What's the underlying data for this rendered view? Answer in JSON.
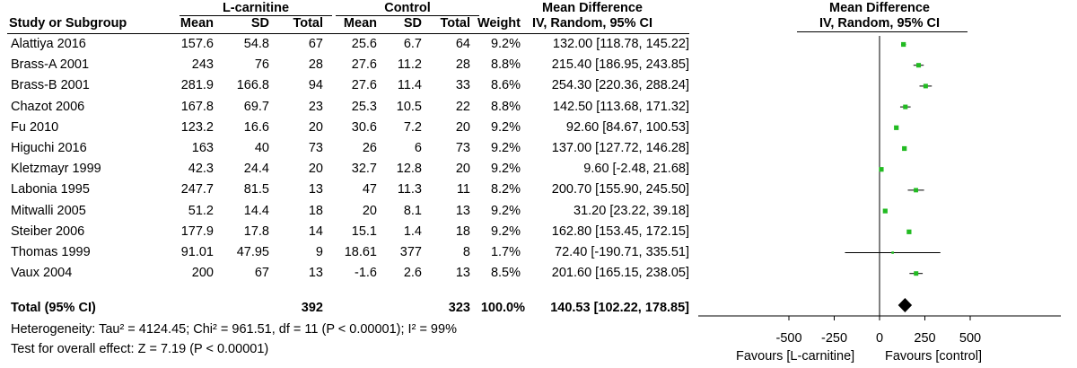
{
  "header": {
    "group1": "L-carnitine",
    "group2": "Control",
    "md_title": "Mean Difference",
    "md_sub": "IV, Random, 95% CI",
    "plot_title": "Mean Difference",
    "plot_sub": "IV, Random, 95% CI",
    "col_study": "Study or Subgroup",
    "col_mean1": "Mean",
    "col_sd1": "SD",
    "col_total1": "Total",
    "col_mean2": "Mean",
    "col_sd2": "SD",
    "col_total2": "Total",
    "col_weight": "Weight"
  },
  "rows": [
    {
      "study": "Alattiya 2016",
      "m1": "157.6",
      "sd1": "54.8",
      "n1": "67",
      "m2": "25.6",
      "sd2": "6.7",
      "n2": "64",
      "weight": "9.2%",
      "ci": "132.00 [118.78, 145.22]"
    },
    {
      "study": "Brass-A 2001",
      "m1": "243",
      "sd1": "76",
      "n1": "28",
      "m2": "27.6",
      "sd2": "11.2",
      "n2": "28",
      "weight": "8.8%",
      "ci": "215.40 [186.95, 243.85]"
    },
    {
      "study": "Brass-B 2001",
      "m1": "281.9",
      "sd1": "166.8",
      "n1": "94",
      "m2": "27.6",
      "sd2": "11.4",
      "n2": "33",
      "weight": "8.6%",
      "ci": "254.30 [220.36, 288.24]"
    },
    {
      "study": "Chazot 2006",
      "m1": "167.8",
      "sd1": "69.7",
      "n1": "23",
      "m2": "25.3",
      "sd2": "10.5",
      "n2": "22",
      "weight": "8.8%",
      "ci": "142.50 [113.68, 171.32]"
    },
    {
      "study": "Fu 2010",
      "m1": "123.2",
      "sd1": "16.6",
      "n1": "20",
      "m2": "30.6",
      "sd2": "7.2",
      "n2": "20",
      "weight": "9.2%",
      "ci": "92.60 [84.67, 100.53]"
    },
    {
      "study": "Higuchi 2016",
      "m1": "163",
      "sd1": "40",
      "n1": "73",
      "m2": "26",
      "sd2": "6",
      "n2": "73",
      "weight": "9.2%",
      "ci": "137.00 [127.72, 146.28]"
    },
    {
      "study": "Kletzmayr 1999",
      "m1": "42.3",
      "sd1": "24.4",
      "n1": "20",
      "m2": "32.7",
      "sd2": "12.8",
      "n2": "20",
      "weight": "9.2%",
      "ci": "9.60 [-2.48, 21.68]"
    },
    {
      "study": "Labonia 1995",
      "m1": "247.7",
      "sd1": "81.5",
      "n1": "13",
      "m2": "47",
      "sd2": "11.3",
      "n2": "11",
      "weight": "8.2%",
      "ci": "200.70 [155.90, 245.50]"
    },
    {
      "study": "Mitwalli 2005",
      "m1": "51.2",
      "sd1": "14.4",
      "n1": "18",
      "m2": "20",
      "sd2": "8.1",
      "n2": "13",
      "weight": "9.2%",
      "ci": "31.20 [23.22, 39.18]"
    },
    {
      "study": "Steiber 2006",
      "m1": "177.9",
      "sd1": "17.8",
      "n1": "14",
      "m2": "15.1",
      "sd2": "1.4",
      "n2": "18",
      "weight": "9.2%",
      "ci": "162.80 [153.45, 172.15]"
    },
    {
      "study": "Thomas 1999",
      "m1": "91.01",
      "sd1": "47.95",
      "n1": "9",
      "m2": "18.61",
      "sd2": "377",
      "n2": "8",
      "weight": "1.7%",
      "ci": "72.40 [-190.71, 335.51]"
    },
    {
      "study": "Vaux 2004",
      "m1": "200",
      "sd1": "67",
      "n1": "13",
      "m2": "-1.6",
      "sd2": "2.6",
      "n2": "13",
      "weight": "8.5%",
      "ci": "201.60 [165.15, 238.05]"
    }
  ],
  "total": {
    "label": "Total (95% CI)",
    "n1": "392",
    "n2": "323",
    "weight": "100.0%",
    "ci": "140.53 [102.22, 178.85]"
  },
  "heterogeneity": "Heterogeneity: Tau² = 4124.45; Chi² = 961.51, df = 11 (P < 0.00001); I² = 99%",
  "overall_effect": "Test for overall effect: Z = 7.19 (P < 0.00001)",
  "axis": {
    "ticks": [
      "-500",
      "-250",
      "0",
      "250",
      "500"
    ],
    "favours_left": "Favours [L-carnitine]",
    "favours_right": "Favours [control]"
  },
  "colors": {
    "marker": "#22bb22",
    "line": "#000000"
  },
  "chart_data": {
    "type": "forest",
    "xlim": [
      -500,
      500
    ],
    "xticks": [
      -500,
      -250,
      0,
      250,
      500
    ],
    "studies": [
      {
        "name": "Alattiya 2016",
        "md": 132.0,
        "lo": 118.78,
        "hi": 145.22,
        "weight": 9.2
      },
      {
        "name": "Brass-A 2001",
        "md": 215.4,
        "lo": 186.95,
        "hi": 243.85,
        "weight": 8.8
      },
      {
        "name": "Brass-B 2001",
        "md": 254.3,
        "lo": 220.36,
        "hi": 288.24,
        "weight": 8.6
      },
      {
        "name": "Chazot 2006",
        "md": 142.5,
        "lo": 113.68,
        "hi": 171.32,
        "weight": 8.8
      },
      {
        "name": "Fu 2010",
        "md": 92.6,
        "lo": 84.67,
        "hi": 100.53,
        "weight": 9.2
      },
      {
        "name": "Higuchi 2016",
        "md": 137.0,
        "lo": 127.72,
        "hi": 146.28,
        "weight": 9.2
      },
      {
        "name": "Kletzmayr 1999",
        "md": 9.6,
        "lo": -2.48,
        "hi": 21.68,
        "weight": 9.2
      },
      {
        "name": "Labonia 1995",
        "md": 200.7,
        "lo": 155.9,
        "hi": 245.5,
        "weight": 8.2
      },
      {
        "name": "Mitwalli 2005",
        "md": 31.2,
        "lo": 23.22,
        "hi": 39.18,
        "weight": 9.2
      },
      {
        "name": "Steiber 2006",
        "md": 162.8,
        "lo": 153.45,
        "hi": 172.15,
        "weight": 9.2
      },
      {
        "name": "Thomas 1999",
        "md": 72.4,
        "lo": -190.71,
        "hi": 335.51,
        "weight": 1.7
      },
      {
        "name": "Vaux 2004",
        "md": 201.6,
        "lo": 165.15,
        "hi": 238.05,
        "weight": 8.5
      }
    ],
    "pooled": {
      "md": 140.53,
      "lo": 102.22,
      "hi": 178.85
    }
  }
}
